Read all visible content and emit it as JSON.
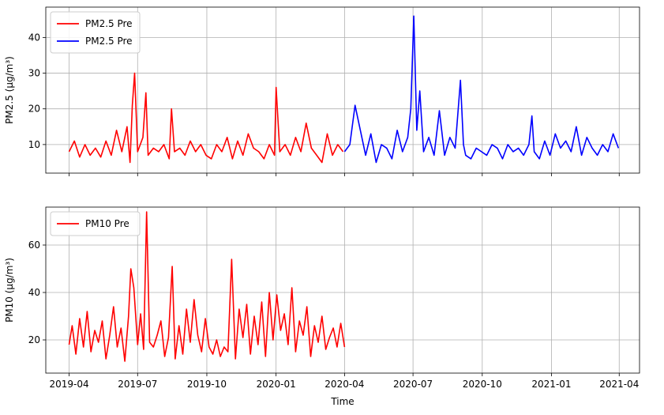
{
  "chart_data": [
    {
      "type": "line",
      "title": "",
      "xlabel": "",
      "ylabel": "PM2.5 (µg/m³)",
      "xlim": [
        "2019-03-01",
        "2021-04-28"
      ],
      "ylim": [
        2,
        48.5
      ],
      "yticks": [
        10,
        20,
        30,
        40
      ],
      "grid": true,
      "legend": "upper-left",
      "series": [
        {
          "name": "PM2.5 Pre",
          "color": "#ff0000",
          "x": [
            "2019-04-01",
            "2019-04-08",
            "2019-04-15",
            "2019-04-22",
            "2019-04-29",
            "2019-05-06",
            "2019-05-13",
            "2019-05-20",
            "2019-05-27",
            "2019-06-03",
            "2019-06-10",
            "2019-06-17",
            "2019-06-21",
            "2019-06-24",
            "2019-06-27",
            "2019-07-01",
            "2019-07-08",
            "2019-07-12",
            "2019-07-15",
            "2019-07-22",
            "2019-07-29",
            "2019-08-05",
            "2019-08-12",
            "2019-08-15",
            "2019-08-19",
            "2019-08-26",
            "2019-09-02",
            "2019-09-09",
            "2019-09-16",
            "2019-09-23",
            "2019-09-30",
            "2019-10-07",
            "2019-10-14",
            "2019-10-21",
            "2019-10-28",
            "2019-11-04",
            "2019-11-11",
            "2019-11-18",
            "2019-11-25",
            "2019-12-02",
            "2019-12-09",
            "2019-12-16",
            "2019-12-23",
            "2019-12-30",
            "2020-01-01",
            "2020-01-06",
            "2020-01-13",
            "2020-01-20",
            "2020-01-27",
            "2020-02-03",
            "2020-02-10",
            "2020-02-17",
            "2020-02-24",
            "2020-03-02",
            "2020-03-09",
            "2020-03-16",
            "2020-03-23",
            "2020-03-30"
          ],
          "y": [
            8,
            11,
            6.5,
            10,
            7,
            9,
            6.5,
            11,
            7,
            14,
            8,
            15,
            5,
            21,
            30,
            8,
            12,
            24.5,
            7,
            9,
            8,
            10,
            6,
            20,
            8,
            9,
            7,
            11,
            8,
            10,
            7,
            6,
            10,
            8,
            12,
            6,
            11,
            7,
            13,
            9,
            8,
            6,
            10,
            7,
            26,
            8,
            10,
            7,
            12,
            8,
            16,
            9,
            7,
            5,
            13,
            7,
            10,
            8
          ]
        },
        {
          "name": "PM2.5 Pre",
          "color": "#0000ff",
          "x": [
            "2020-04-01",
            "2020-04-08",
            "2020-04-15",
            "2020-04-22",
            "2020-04-29",
            "2020-05-06",
            "2020-05-13",
            "2020-05-20",
            "2020-05-27",
            "2020-06-03",
            "2020-06-10",
            "2020-06-17",
            "2020-06-24",
            "2020-06-28",
            "2020-07-02",
            "2020-07-06",
            "2020-07-10",
            "2020-07-15",
            "2020-07-22",
            "2020-07-29",
            "2020-08-05",
            "2020-08-12",
            "2020-08-19",
            "2020-08-26",
            "2020-09-02",
            "2020-09-06",
            "2020-09-09",
            "2020-09-16",
            "2020-09-23",
            "2020-09-30",
            "2020-10-07",
            "2020-10-14",
            "2020-10-21",
            "2020-10-28",
            "2020-11-04",
            "2020-11-11",
            "2020-11-18",
            "2020-11-25",
            "2020-12-02",
            "2020-12-06",
            "2020-12-09",
            "2020-12-16",
            "2020-12-23",
            "2020-12-30",
            "2021-01-06",
            "2021-01-13",
            "2021-01-20",
            "2021-01-27",
            "2021-02-03",
            "2021-02-10",
            "2021-02-17",
            "2021-02-24",
            "2021-03-03",
            "2021-03-10",
            "2021-03-17",
            "2021-03-24",
            "2021-03-31"
          ],
          "y": [
            8,
            10,
            21,
            14,
            7,
            13,
            5,
            10,
            9,
            6,
            14,
            8,
            12,
            20,
            46,
            14,
            25,
            8,
            12,
            7,
            19.5,
            7,
            12,
            9,
            28,
            10,
            7,
            6,
            9,
            8,
            7,
            10,
            9,
            6,
            10,
            8,
            9,
            7,
            10,
            18,
            8,
            6,
            11,
            7,
            13,
            9,
            11,
            8,
            15,
            7,
            12,
            9,
            7,
            10,
            8,
            13,
            9
          ]
        }
      ]
    },
    {
      "type": "line",
      "title": "",
      "xlabel": "Time",
      "ylabel": "PM10 (µg/m³)",
      "xlim": [
        "2019-03-01",
        "2021-04-28"
      ],
      "ylim": [
        6,
        76
      ],
      "yticks": [
        20,
        40,
        60
      ],
      "xticks": [
        "2019-04",
        "2019-07",
        "2019-10",
        "2020-01",
        "2020-04",
        "2020-07",
        "2020-10",
        "2021-01",
        "2021-04"
      ],
      "grid": true,
      "legend": "upper-left",
      "series": [
        {
          "name": "PM10 Pre",
          "color": "#ff0000",
          "x": [
            "2019-04-01",
            "2019-04-05",
            "2019-04-10",
            "2019-04-15",
            "2019-04-20",
            "2019-04-25",
            "2019-04-30",
            "2019-05-05",
            "2019-05-10",
            "2019-05-15",
            "2019-05-20",
            "2019-05-25",
            "2019-05-30",
            "2019-06-04",
            "2019-06-09",
            "2019-06-14",
            "2019-06-19",
            "2019-06-22",
            "2019-06-26",
            "2019-07-01",
            "2019-07-05",
            "2019-07-09",
            "2019-07-13",
            "2019-07-17",
            "2019-07-22",
            "2019-07-27",
            "2019-08-01",
            "2019-08-06",
            "2019-08-11",
            "2019-08-16",
            "2019-08-20",
            "2019-08-25",
            "2019-08-30",
            "2019-09-04",
            "2019-09-09",
            "2019-09-14",
            "2019-09-19",
            "2019-09-24",
            "2019-09-29",
            "2019-10-04",
            "2019-10-09",
            "2019-10-14",
            "2019-10-19",
            "2019-10-24",
            "2019-10-29",
            "2019-11-03",
            "2019-11-08",
            "2019-11-13",
            "2019-11-18",
            "2019-11-23",
            "2019-11-28",
            "2019-12-03",
            "2019-12-08",
            "2019-12-13",
            "2019-12-18",
            "2019-12-23",
            "2019-12-28",
            "2020-01-02",
            "2020-01-07",
            "2020-01-12",
            "2020-01-17",
            "2020-01-22",
            "2020-01-27",
            "2020-02-01",
            "2020-02-06",
            "2020-02-11",
            "2020-02-16",
            "2020-02-21",
            "2020-02-26",
            "2020-03-02",
            "2020-03-07",
            "2020-03-12",
            "2020-03-17",
            "2020-03-22",
            "2020-03-27",
            "2020-04-01"
          ],
          "y": [
            18,
            26,
            14,
            29,
            17,
            32,
            15,
            24,
            19,
            28,
            12,
            22,
            34,
            17,
            25,
            11,
            30,
            50,
            42,
            18,
            31,
            16,
            74,
            19,
            17,
            22,
            28,
            13,
            21,
            51,
            12,
            26,
            14,
            33,
            19,
            37,
            22,
            15,
            29,
            17,
            14,
            20,
            13,
            17,
            15,
            54,
            12,
            33,
            21,
            35,
            14,
            30,
            18,
            36,
            13,
            40,
            20,
            39,
            24,
            31,
            18,
            42,
            15,
            28,
            22,
            34,
            13,
            26,
            19,
            30,
            16,
            21,
            25,
            17,
            27,
            17
          ]
        }
      ]
    }
  ]
}
